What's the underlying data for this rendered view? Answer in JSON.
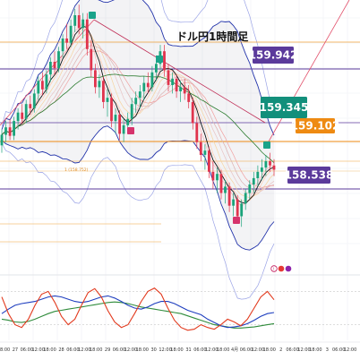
{
  "chart_data": {
    "type": "line",
    "title": "ドル円1時間足",
    "price_levels": [
      {
        "value": "159.942",
        "color": "#5b3a9b"
      },
      {
        "value": "159.345",
        "color": "#128f7b"
      },
      {
        "value": "159.102",
        "color": "#ee8a12"
      },
      {
        "value": "158.538",
        "color": "#5b3a9b"
      }
    ],
    "fib_label": "1 (158.752)",
    "x_ticks": [
      "18:00",
      "27",
      "06:00",
      "12:00",
      "18:00",
      "28",
      "06:00",
      "12:00",
      "18:00",
      "29",
      "06:00",
      "12:00",
      "18:00",
      "30",
      "12:00",
      "18:00",
      "31",
      "06:00",
      "12:00",
      "18:00",
      "4月",
      "06:00",
      "12:00",
      "18:00",
      "2",
      "06:00",
      "12:00",
      "18:00",
      "3",
      "06:00",
      "12:00"
    ],
    "candles": [
      [
        158.95,
        159.1,
        158.88,
        159.05
      ],
      [
        159.05,
        159.18,
        158.98,
        159.12
      ],
      [
        159.12,
        159.2,
        159.0,
        159.04
      ],
      [
        159.04,
        159.22,
        159.0,
        159.18
      ],
      [
        159.18,
        159.3,
        159.1,
        159.26
      ],
      [
        159.26,
        159.34,
        159.15,
        159.2
      ],
      [
        159.2,
        159.38,
        159.16,
        159.34
      ],
      [
        159.34,
        159.42,
        159.24,
        159.3
      ],
      [
        159.3,
        159.48,
        159.26,
        159.44
      ],
      [
        159.44,
        159.6,
        159.38,
        159.56
      ],
      [
        159.56,
        159.64,
        159.42,
        159.48
      ],
      [
        159.48,
        159.66,
        159.44,
        159.62
      ],
      [
        159.62,
        159.78,
        159.55,
        159.74
      ],
      [
        159.74,
        159.84,
        159.62,
        159.68
      ],
      [
        159.68,
        159.88,
        159.64,
        159.84
      ],
      [
        159.84,
        160.0,
        159.78,
        159.96
      ],
      [
        159.96,
        160.1,
        159.86,
        159.92
      ],
      [
        159.92,
        160.14,
        159.88,
        160.08
      ],
      [
        160.08,
        160.24,
        160.02,
        160.18
      ],
      [
        160.18,
        160.28,
        160.0,
        160.06
      ],
      [
        160.06,
        160.2,
        159.96,
        160.14
      ],
      [
        160.14,
        160.2,
        159.8,
        159.86
      ],
      [
        159.86,
        159.94,
        159.6,
        159.66
      ],
      [
        159.66,
        159.72,
        159.44,
        159.5
      ],
      [
        159.5,
        159.62,
        159.4,
        159.56
      ],
      [
        159.56,
        159.6,
        159.3,
        159.36
      ],
      [
        159.36,
        159.48,
        159.22,
        159.4
      ],
      [
        159.4,
        159.44,
        159.12,
        159.18
      ],
      [
        159.18,
        159.3,
        159.06,
        159.24
      ],
      [
        159.24,
        159.28,
        159.0,
        159.06
      ],
      [
        159.06,
        159.2,
        158.98,
        159.14
      ],
      [
        159.14,
        159.26,
        159.06,
        159.2
      ],
      [
        159.2,
        159.4,
        159.14,
        159.34
      ],
      [
        159.34,
        159.46,
        159.26,
        159.4
      ],
      [
        159.4,
        159.52,
        159.3,
        159.46
      ],
      [
        159.46,
        159.6,
        159.38,
        159.54
      ],
      [
        159.54,
        159.64,
        159.44,
        159.5
      ],
      [
        159.5,
        159.7,
        159.46,
        159.64
      ],
      [
        159.64,
        159.8,
        159.56,
        159.72
      ],
      [
        159.72,
        159.9,
        159.66,
        159.84
      ],
      [
        159.84,
        159.9,
        159.6,
        159.66
      ],
      [
        159.66,
        159.72,
        159.46,
        159.52
      ],
      [
        159.52,
        159.64,
        159.44,
        159.58
      ],
      [
        159.58,
        159.62,
        159.4,
        159.46
      ],
      [
        159.46,
        159.56,
        159.36,
        159.5
      ],
      [
        159.5,
        159.58,
        159.38,
        159.44
      ],
      [
        159.44,
        159.52,
        159.3,
        159.36
      ],
      [
        159.36,
        159.4,
        159.1,
        159.16
      ],
      [
        159.16,
        159.22,
        158.92,
        158.98
      ],
      [
        158.98,
        159.06,
        158.8,
        158.86
      ],
      [
        158.86,
        158.96,
        158.72,
        158.9
      ],
      [
        158.9,
        158.94,
        158.64,
        158.7
      ],
      [
        158.7,
        158.8,
        158.54,
        158.62
      ],
      [
        158.62,
        158.74,
        158.5,
        158.68
      ],
      [
        158.68,
        158.72,
        158.44,
        158.5
      ],
      [
        158.5,
        158.62,
        158.4,
        158.56
      ],
      [
        158.56,
        158.6,
        158.32,
        158.38
      ],
      [
        158.38,
        158.5,
        158.28,
        158.44
      ],
      [
        158.44,
        158.48,
        158.22,
        158.28
      ],
      [
        158.28,
        158.44,
        158.18,
        158.4
      ],
      [
        158.4,
        158.54,
        158.34,
        158.5
      ],
      [
        158.5,
        158.62,
        158.44,
        158.58
      ],
      [
        158.58,
        158.7,
        158.5,
        158.64
      ],
      [
        158.64,
        158.76,
        158.56,
        158.7
      ],
      [
        158.7,
        158.82,
        158.62,
        158.74
      ],
      [
        158.74,
        158.86,
        158.66,
        158.8
      ],
      [
        158.8,
        158.88,
        158.7,
        158.76
      ],
      [
        158.76,
        158.82,
        158.66,
        158.72
      ]
    ],
    "oscillator": {
      "red": [
        70,
        40,
        20,
        15,
        30,
        55,
        75,
        80,
        60,
        35,
        20,
        30,
        55,
        78,
        85,
        70,
        45,
        25,
        15,
        20,
        40,
        62,
        80,
        86,
        75,
        50,
        28,
        15,
        10,
        12,
        20,
        15,
        12,
        20,
        30,
        25,
        18,
        30,
        50,
        70,
        80,
        65
      ],
      "blue": [
        40,
        48,
        55,
        58,
        60,
        62,
        66,
        70,
        72,
        70,
        66,
        62,
        60,
        62,
        66,
        70,
        72,
        68,
        62,
        55,
        50,
        48,
        52,
        58,
        62,
        62,
        58,
        52,
        46,
        42,
        38,
        30,
        24,
        18,
        15,
        16,
        18,
        22,
        28,
        35,
        40,
        42
      ],
      "green": [
        30,
        28,
        25,
        24,
        26,
        30,
        35,
        40,
        44,
        46,
        48,
        50,
        52,
        54,
        56,
        58,
        60,
        61,
        60,
        58,
        55,
        52,
        50,
        48,
        46,
        44,
        42,
        40,
        36,
        32,
        28,
        24,
        20,
        18,
        16,
        14,
        14,
        15,
        16,
        18,
        20,
        22
      ]
    }
  },
  "icons": {
    "markers_up": [
      "teal-marker-up"
    ],
    "markers_down": [
      "magenta-marker-down"
    ]
  }
}
